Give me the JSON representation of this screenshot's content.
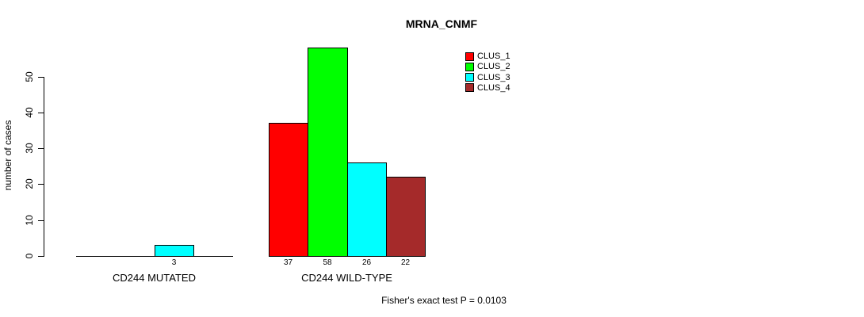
{
  "chart_data": {
    "type": "bar",
    "title": "MRNA_CNMF",
    "ylabel": "number of cases",
    "xlabel": "",
    "ylim": [
      0,
      58
    ],
    "yticks": [
      0,
      10,
      20,
      30,
      40,
      50
    ],
    "grid": false,
    "legend_position": "top-right",
    "categories": [
      "CD244 MUTATED",
      "CD244 WILD-TYPE"
    ],
    "series": [
      {
        "name": "CLUS_1",
        "color": "#FF0000",
        "values": [
          0,
          37
        ]
      },
      {
        "name": "CLUS_2",
        "color": "#00FF00",
        "values": [
          0,
          58
        ]
      },
      {
        "name": "CLUS_3",
        "color": "#00FFFF",
        "values": [
          3,
          26
        ]
      },
      {
        "name": "CLUS_4",
        "color": "#A52A2A",
        "values": [
          0,
          22
        ]
      }
    ],
    "bar_value_labels": [
      [
        "",
        "",
        "3",
        ""
      ],
      [
        "37",
        "58",
        "26",
        "22"
      ]
    ],
    "show_zero_value_labels": false,
    "annotation": "Fisher's exact test P = 0.0103"
  }
}
